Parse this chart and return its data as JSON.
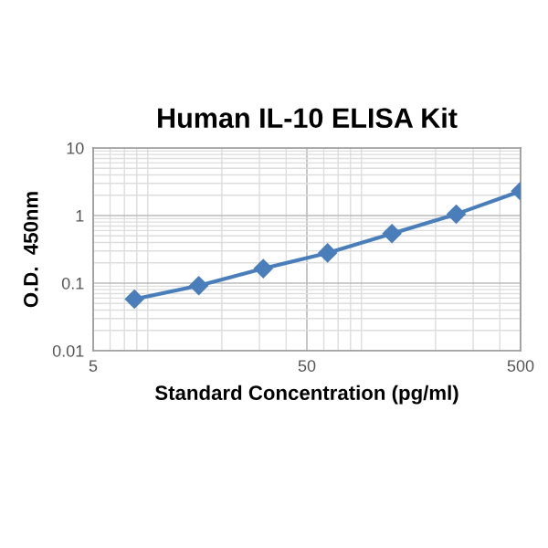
{
  "chart_data": {
    "type": "line",
    "title": "Human IL-10 ELISA Kit",
    "xlabel": "Standard Concentration (pg/ml)",
    "ylabel": "O.D.  450nm",
    "x": [
      7.8,
      15.6,
      31.25,
      62.5,
      125,
      250,
      500
    ],
    "series": [
      {
        "color": "#4a7ebb",
        "values": [
          0.058,
          0.092,
          0.164,
          0.28,
          0.54,
          1.05,
          2.3
        ]
      }
    ],
    "log": "xy",
    "xlim": [
      5,
      500
    ],
    "xticks": [
      5,
      50,
      500
    ],
    "ylim": [
      0.01,
      10
    ],
    "yticks": [
      0.01,
      0.1,
      1,
      10
    ],
    "grid": true,
    "marker": "diamond",
    "line_style": "solid"
  }
}
